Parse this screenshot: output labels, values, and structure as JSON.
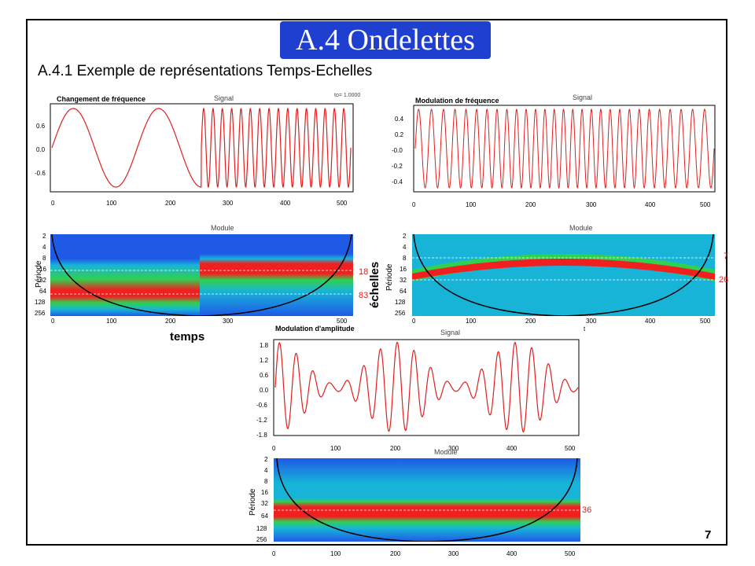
{
  "header": {
    "title": "A.4 Ondelettes",
    "subtitle": "A.4.1 Exemple de représentations Temps-Echelles"
  },
  "panels": {
    "p1": {
      "title": "Changement de fréquence",
      "label": "Signal",
      "extra": "to= 1.0000"
    },
    "p2": {
      "title": "Modulation de fréquence",
      "label": "Signal"
    },
    "p3": {
      "label": "Module",
      "ylabel": "Période",
      "markers": [
        "18",
        "83"
      ]
    },
    "p4": {
      "label": "Module",
      "ylabel": "Période",
      "markers": [
        "7",
        "26"
      ],
      "extra": "t"
    },
    "p5": {
      "title": "Modulation d'amplitude",
      "label": "Signal"
    },
    "p6": {
      "label": "Module",
      "ylabel": "Période",
      "markers": [
        "36"
      ]
    }
  },
  "labels": {
    "time": "temps",
    "scales": "échelles"
  },
  "page_number": "7",
  "axes": {
    "x_ticks": [
      "0",
      "100",
      "200",
      "300",
      "400",
      "500"
    ],
    "y_ticks_p1": [
      "0.6",
      "0.0",
      "-0.6"
    ],
    "y_ticks_p2": [
      "0.4",
      "0.2",
      "-0.0",
      "-0.2",
      "-0.4"
    ],
    "y_ticks_p5": [
      "1.8",
      "1.2",
      "0.6",
      "0.0",
      "-0.6",
      "-1.2",
      "-1.8"
    ],
    "y_ticks_period": [
      "2",
      "4",
      "8",
      "16",
      "32",
      "64",
      "128",
      "256"
    ]
  },
  "colors": {
    "accent": "#1f3fd0",
    "signal": "#e02020",
    "heat_low": "#1e5ae6",
    "heat_mid": "#18b4d8",
    "heat_green": "#30d050",
    "heat_high": "#f02020"
  }
}
